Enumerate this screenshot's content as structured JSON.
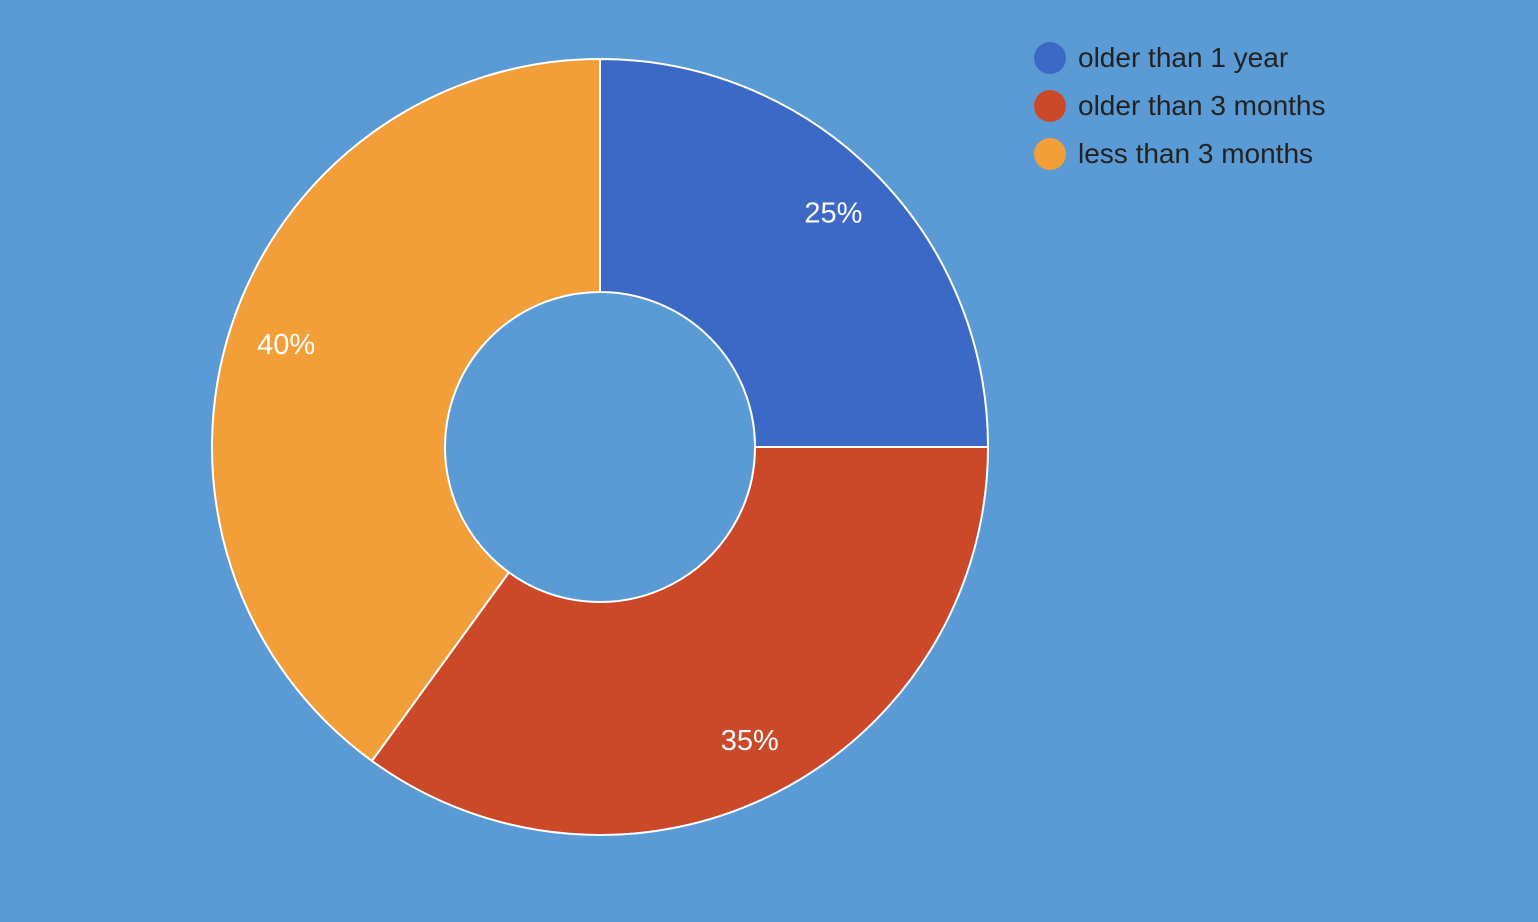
{
  "chart_data": {
    "type": "pie",
    "variant": "donut",
    "background": "#5b9bd5",
    "slice_border_color": "#ffffff",
    "legend_position": "top-right",
    "slices": [
      {
        "name": "older than 1 year",
        "value": 25,
        "label": "25%",
        "color": "#3d69c6"
      },
      {
        "name": "older than 3 months",
        "value": 35,
        "label": "35%",
        "color": "#cb4828"
      },
      {
        "name": "less than 3 months",
        "value": 40,
        "label": "40%",
        "color": "#f29e39"
      }
    ]
  }
}
